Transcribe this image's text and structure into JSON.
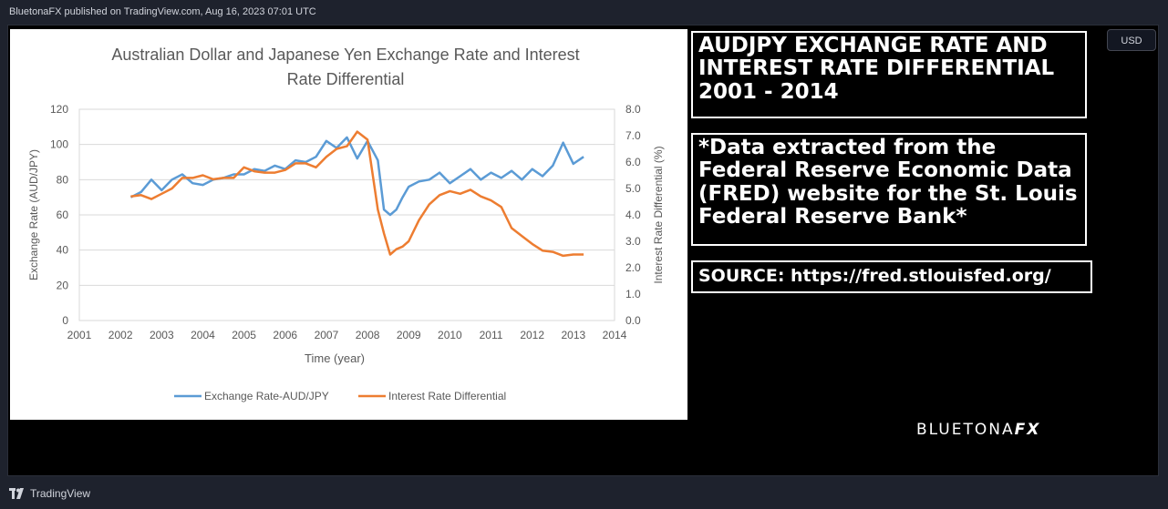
{
  "header": {
    "publisher_line": "BluetonaFX published on TradingView.com, Aug 16, 2023 07:01 UTC"
  },
  "currency_button": {
    "label": "USD"
  },
  "textboxes": {
    "title": "AUDJPY EXCHANGE RATE AND INTEREST RATE DIFFERENTIAL 2001 - 2014",
    "note": "*Data extracted from the Federal Reserve Economic Data (FRED) website for the St. Louis Federal Reserve Bank*",
    "source": "SOURCE: https://fred.stlouisfed.org/"
  },
  "brand": {
    "part1": "BLUETONA",
    "part2": "FX"
  },
  "footer": {
    "label": "TradingView"
  },
  "colors": {
    "blue": "#5b9bd5",
    "orange": "#ed7d31",
    "background": "#000000",
    "panel": "#1e222d"
  },
  "chart_data": {
    "type": "line",
    "title_line1": "Australian Dollar and Japanese Yen Exchange Rate and Interest",
    "title_line2": "Rate Differential",
    "xlabel": "Time (year)",
    "ylabel_left": "Exchange Rate (AUD/JPY)",
    "ylabel_right": "Interest Rate Differential (%)",
    "xlim": [
      2001,
      2014
    ],
    "ylim_left": [
      0,
      120
    ],
    "ylim_right": [
      0,
      8
    ],
    "x_ticks": [
      "2001",
      "2002",
      "2003",
      "2004",
      "2005",
      "2006",
      "2007",
      "2008",
      "2009",
      "2010",
      "2011",
      "2012",
      "2013",
      "2014"
    ],
    "y_ticks_left": [
      "0",
      "20",
      "40",
      "60",
      "80",
      "100",
      "120"
    ],
    "y_ticks_right": [
      "0.0",
      "1.0",
      "2.0",
      "3.0",
      "4.0",
      "5.0",
      "6.0",
      "7.0",
      "8.0"
    ],
    "legend_position": "bottom",
    "grid": "horizontal",
    "series": [
      {
        "name": "Exchange Rate-AUD/JPY",
        "axis": "left",
        "color": "#5b9bd5",
        "x": [
          2002.25,
          2002.5,
          2002.75,
          2003.0,
          2003.25,
          2003.5,
          2003.75,
          2004.0,
          2004.25,
          2004.5,
          2004.75,
          2005.0,
          2005.25,
          2005.5,
          2005.75,
          2006.0,
          2006.25,
          2006.5,
          2006.75,
          2007.0,
          2007.25,
          2007.5,
          2007.75,
          2008.0,
          2008.25,
          2008.4,
          2008.55,
          2008.7,
          2008.85,
          2009.0,
          2009.25,
          2009.5,
          2009.75,
          2010.0,
          2010.25,
          2010.5,
          2010.75,
          2011.0,
          2011.25,
          2011.5,
          2011.75,
          2012.0,
          2012.25,
          2012.5,
          2012.75,
          2013.0,
          2013.25
        ],
        "values": [
          70,
          73,
          80,
          74,
          80,
          83,
          78,
          77,
          80,
          81,
          83,
          83,
          86,
          85,
          88,
          86,
          91,
          90,
          93,
          102,
          98,
          104,
          92,
          102,
          91,
          63,
          60,
          63,
          70,
          76,
          79,
          80,
          84,
          78,
          82,
          86,
          80,
          84,
          81,
          85,
          80,
          86,
          82,
          88,
          101,
          89,
          93
        ]
      },
      {
        "name": "Interest Rate Differential",
        "axis": "right",
        "color": "#ed7d31",
        "x": [
          2002.25,
          2002.5,
          2002.75,
          2003.0,
          2003.25,
          2003.5,
          2003.75,
          2004.0,
          2004.25,
          2004.5,
          2004.75,
          2005.0,
          2005.25,
          2005.5,
          2005.75,
          2006.0,
          2006.25,
          2006.5,
          2006.75,
          2007.0,
          2007.25,
          2007.5,
          2007.75,
          2008.0,
          2008.25,
          2008.4,
          2008.55,
          2008.7,
          2008.85,
          2009.0,
          2009.25,
          2009.5,
          2009.75,
          2010.0,
          2010.25,
          2010.5,
          2010.75,
          2011.0,
          2011.25,
          2011.5,
          2011.75,
          2012.0,
          2012.25,
          2012.5,
          2012.75,
          2013.0,
          2013.25
        ],
        "values": [
          4.7,
          4.75,
          4.6,
          4.8,
          5.0,
          5.4,
          5.4,
          5.5,
          5.35,
          5.4,
          5.4,
          5.8,
          5.65,
          5.6,
          5.6,
          5.7,
          5.95,
          5.95,
          5.8,
          6.2,
          6.5,
          6.6,
          7.15,
          6.85,
          4.2,
          3.3,
          2.5,
          2.7,
          2.8,
          3.0,
          3.8,
          4.4,
          4.75,
          4.9,
          4.8,
          4.95,
          4.7,
          4.55,
          4.3,
          3.5,
          3.2,
          2.9,
          2.65,
          2.6,
          2.45,
          2.5,
          2.5
        ]
      }
    ]
  }
}
